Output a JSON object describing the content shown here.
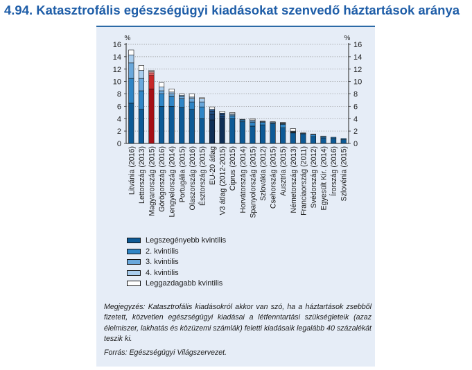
{
  "figure": {
    "title": "4.94. Katasztrofális egészségügyi kiadásokat szenvedő háztartások aránya",
    "note": "Megjegyzés: Katasztrofális kiadásokról akkor van szó, ha a háztartások zsebből fizetett, közvetlen egészségügyi kiadásai a létfenntartási szükségleteik (azaz élelmiszer, lakhatás és közüzemi számlák) feletti kiadásaik legalább 40 százalékát teszik ki.",
    "source": "Forrás: Egészségügyi Világszervezet."
  },
  "chart_data": {
    "type": "bar",
    "stacked": true,
    "ylabel": "%",
    "ylabel_right": "%",
    "ylim": [
      0,
      16
    ],
    "yticks": [
      0,
      2,
      4,
      6,
      8,
      10,
      12,
      14,
      16
    ],
    "grid": true,
    "legend_position": "bottom",
    "categories": [
      "Litvánia (2016)",
      "Lettország (2013)",
      "Magyarország (2015)",
      "Görögország (2016)",
      "Lengyelország (2014)",
      "Portugália (2015)",
      "Olaszország (2016)",
      "Észtország (2015)",
      "EU-20 átlag",
      "V3 átlag (2012-2015)",
      "Ciprus (2015)",
      "Horvátország (2014)",
      "Spanyolország (2015)",
      "Szlovákia (2012)",
      "Csehország (2015)",
      "Ausztria (2015)",
      "Németország (2013)",
      "Franciaország (2011)",
      "Svédország (2012)",
      "Egyesült Kir. (2014)",
      "Írország (2016)",
      "Szlovénia (2015)"
    ],
    "highlight": {
      "Magyarország (2015)": [
        "#a50f15",
        "#c62828",
        "#e06060",
        "#f0a0a0",
        "#ffffff"
      ],
      "EU-20 átlag": [
        "#0f2f57",
        "#173f70",
        "#1f4d85",
        "#2c5d96",
        "#ffffff"
      ],
      "V3 átlag (2012-2015)": [
        "#0f2f57",
        "#173f70",
        "#1f4d85",
        "#2c5d96",
        "#ffffff"
      ]
    },
    "series": [
      {
        "name": "Legszegényebb kvintilis",
        "color": "#0d5a96",
        "values": [
          6.5,
          5.5,
          8.8,
          6.0,
          6.0,
          5.8,
          5.5,
          4.0,
          3.8,
          4.0,
          4.0,
          3.5,
          2.8,
          3.0,
          3.2,
          2.5,
          1.7,
          1.5,
          1.1,
          0.9,
          0.8,
          0.6
        ]
      },
      {
        "name": "2. kvintilis",
        "color": "#2f85c6",
        "values": [
          4.0,
          3.0,
          2.2,
          2.0,
          1.6,
          1.4,
          1.2,
          1.9,
          0.9,
          0.3,
          0.4,
          0.3,
          0.6,
          0.4,
          0.2,
          0.6,
          0.1,
          0.1,
          0.3,
          0.2,
          0.2,
          0.2
        ]
      },
      {
        "name": "3. kvintilis",
        "color": "#6aa8dc",
        "values": [
          2.5,
          2.0,
          0.4,
          0.5,
          0.4,
          0.4,
          0.5,
          0.8,
          0.5,
          0.4,
          0.2,
          0.1,
          0.2,
          0.1,
          0.0,
          0.1,
          0.1,
          0.1,
          0.1,
          0.0,
          0.0,
          0.0
        ]
      },
      {
        "name": "4. kvintilis",
        "color": "#a9cdee",
        "values": [
          1.3,
          1.3,
          0.2,
          0.6,
          0.3,
          0.2,
          0.3,
          0.5,
          0.3,
          0.2,
          0.2,
          0.0,
          0.2,
          0.1,
          0.0,
          0.1,
          0.1,
          0.0,
          0.0,
          0.0,
          0.0,
          0.0
        ]
      },
      {
        "name": "Leggazdagabb kvintilis",
        "color": "#ffffff",
        "values": [
          0.8,
          0.8,
          0.2,
          0.7,
          0.5,
          0.2,
          0.5,
          0.2,
          0.4,
          0.3,
          0.2,
          0.0,
          0.2,
          0.0,
          0.1,
          0.1,
          0.4,
          0.0,
          0.0,
          0.1,
          0.0,
          0.0
        ]
      }
    ]
  }
}
